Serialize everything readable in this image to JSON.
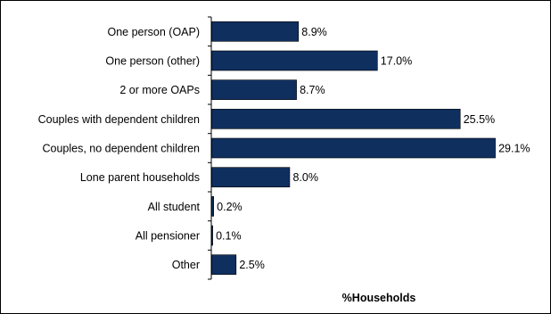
{
  "chart_data": {
    "type": "bar",
    "orientation": "horizontal",
    "categories": [
      "One person (OAP)",
      "One person (other)",
      "2 or more OAPs",
      "Couples with dependent children",
      "Couples, no dependent children",
      "Lone parent households",
      "All student",
      "All pensioner",
      "Other"
    ],
    "values": [
      8.9,
      17.0,
      8.7,
      25.5,
      29.1,
      8.0,
      0.2,
      0.1,
      2.5
    ],
    "value_labels": [
      "8.9%",
      "17.0%",
      "8.7%",
      "25.5%",
      "29.1%",
      "8.0%",
      "0.2%",
      "0.1%",
      "2.5%"
    ],
    "title": "",
    "xlabel": "%Households",
    "ylabel": "",
    "xlim": [
      0,
      30
    ],
    "grid": false,
    "legend": "none",
    "bar_color": "#0f2f5f"
  }
}
